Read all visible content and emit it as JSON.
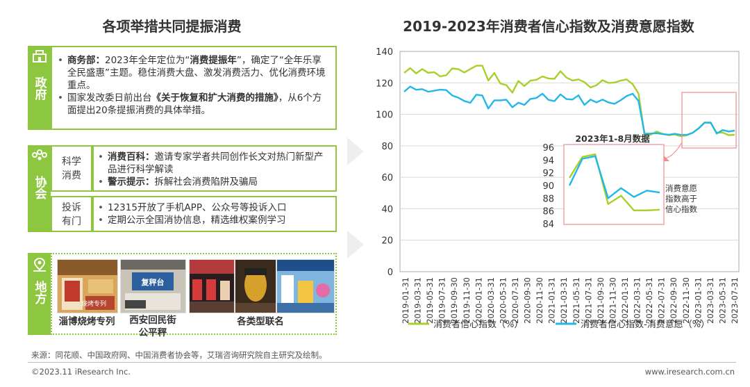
{
  "left_title": "各项举措共同提振消费",
  "right_title": "2019-2023年消费者信心指数及消费意愿指数",
  "gov": {
    "label": "政府",
    "bullets": [
      {
        "bold": "商务部：",
        "text": "2023年全年定位为“",
        "bold2": "消费提振年",
        "text2": "”，确定了“全年乐享全民盛惠”主题。稳住消费大盘、激发消费活力、优化消费环境重点。"
      },
      {
        "bold": "",
        "text": "国家发改委日前出台",
        "bold2": "《关于恢复和扩大消费的措施》",
        "text2": "，从6个方面提出20条提振消费的具体举措。"
      }
    ]
  },
  "assoc": {
    "label": "协会",
    "rows": [
      {
        "sub": "科学消费",
        "bullets": [
          {
            "bold": "消费百科：",
            "text": "邀请专家学者共同创作长文对热门新型产品进行科学解读"
          },
          {
            "bold": "警示提示：",
            "text": "拆解社会消费陷阱及骗局"
          }
        ]
      },
      {
        "sub": "投诉有门",
        "bullets": [
          {
            "bold": "",
            "text": "12315开放了手机APP、公众号等投诉入口"
          },
          {
            "bold": "",
            "text": "定期公示全国消协信息，精选维权案例学习"
          }
        ]
      }
    ]
  },
  "local": {
    "label": "地方",
    "captions": [
      "淄博烧烤专列",
      "西安回民街公平秤",
      "各类型联名"
    ],
    "photo_texts": [
      "烧烤专列",
      "复秤台"
    ]
  },
  "source": "来源：同花顺、中国政府网、中国消费者协会等，艾瑞咨询研究院自主研究及绘制。",
  "copyright": "©2023.11 iResearch Inc.",
  "website": "www.iresearch.com.cn",
  "colors": {
    "green": "#8dc63f",
    "confidence": "#a8cf2a",
    "willingness": "#21b7e6",
    "highlight": "#f08c8c"
  },
  "chart_data": [
    {
      "type": "line",
      "title": "2019-2023年消费者信心指数及消费意愿指数",
      "x_tick_labels": [
        "2019-01-31",
        "2019-03-31",
        "2019-05-31",
        "2019-07-31",
        "2019-09-30",
        "2019-11-30",
        "2020-01-31",
        "2020-03-31",
        "2020-05-31",
        "2020-07-31",
        "2020-09-30",
        "2020-11-30",
        "2021-01-31",
        "2021-03-31",
        "2021-05-31",
        "2021-07-31",
        "2021-09-30",
        "2021-11-30",
        "2022-01-31",
        "2022-03-31",
        "2022-05-31",
        "2022-07-31",
        "2022-09-30",
        "2022-11-30",
        "2023-01-31",
        "2023-03-31",
        "2023-05-31",
        "2023-07-31"
      ],
      "ylim": [
        0,
        140
      ],
      "yticks": [
        0,
        20,
        40,
        60,
        80,
        100,
        120,
        140
      ],
      "grid": true,
      "legend_position": "bottom",
      "series": [
        {
          "name": "消费者信心指数（%）",
          "values": [
            126.4,
            129.4,
            126.0,
            128.8,
            126.4,
            126.8,
            124.1,
            124.9,
            129.2,
            128.8,
            126.6,
            128.8,
            130.9,
            131.0,
            121.5,
            126.3,
            119.6,
            118.6,
            113.8,
            121.2,
            118.0,
            121.4,
            122.0,
            124.1,
            122.8,
            122.6,
            127.4,
            123.4,
            121.5,
            122.2,
            120.5,
            117.1,
            118.5,
            121.7,
            120.0,
            120.2,
            121.4,
            122.2,
            119.3,
            113.2,
            86.7,
            87.0,
            89.1,
            87.6,
            86.8,
            87.2,
            86.1,
            86.7,
            88.3,
            91.2,
            94.9,
            94.5,
            88.3,
            88.4,
            86.8,
            87.0
          ]
        },
        {
          "name": "消费者信心指数-消费意愿（%）",
          "values": [
            114.4,
            117.7,
            115.6,
            116.0,
            114.4,
            115.0,
            115.7,
            115.4,
            112.0,
            110.6,
            108.5,
            107.3,
            112.5,
            112.0,
            103.7,
            108.9,
            108.9,
            109.3,
            104.5,
            107.4,
            106.0,
            109.8,
            110.4,
            113.1,
            109.2,
            108.4,
            112.7,
            109.7,
            109.4,
            112.1,
            106.0,
            109.4,
            107.6,
            109.4,
            107.6,
            106.7,
            108.9,
            111.6,
            113.1,
            108.5,
            87.7,
            87.8,
            88.0,
            87.5,
            87.0,
            87.6,
            87.0,
            86.9,
            88.3,
            91.0,
            94.7,
            94.8,
            87.8,
            90.0,
            89.1,
            89.7
          ]
        }
      ]
    },
    {
      "type": "line",
      "title": "2023年1-8月数据",
      "ylim": [
        84,
        96
      ],
      "yticks": [
        84,
        86,
        88,
        90,
        92,
        94,
        96
      ],
      "annotation": "消费意愿指数高于信心指数",
      "series": [
        {
          "name": "消费者信心指数",
          "values": [
            91.2,
            94.5,
            94.9,
            87.1,
            88.4,
            86.1,
            86.1,
            86.2
          ]
        },
        {
          "name": "消费意愿指数",
          "values": [
            90.0,
            94.2,
            94.6,
            88.0,
            89.6,
            88.2,
            89.2,
            88.9
          ]
        }
      ]
    }
  ]
}
